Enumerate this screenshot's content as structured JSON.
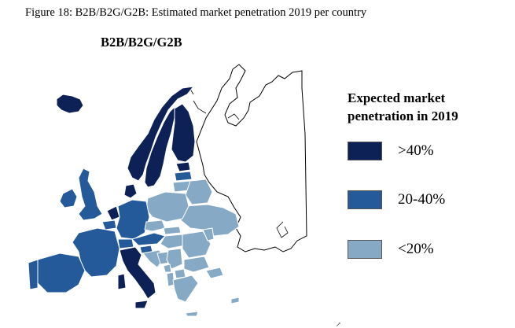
{
  "figure_caption": "Figure 18: B2B/B2G/G2B: Estimated market penetration 2019 per country",
  "map_title": "B2B/B2G/G2B",
  "legend": {
    "title": "Expected market penetration in 2019",
    "items": [
      {
        "label": ">40%",
        "color": "#0d2156"
      },
      {
        "label": "20-40%",
        "color": "#245a9a"
      },
      {
        "label": "<20%",
        "color": "#86a9c5"
      }
    ]
  },
  "colors": {
    "border": "#ffffff",
    "outline": "#000000",
    "no_data": "#ffffff"
  },
  "icons": {
    "cursor": "pointer-cursor-icon"
  }
}
